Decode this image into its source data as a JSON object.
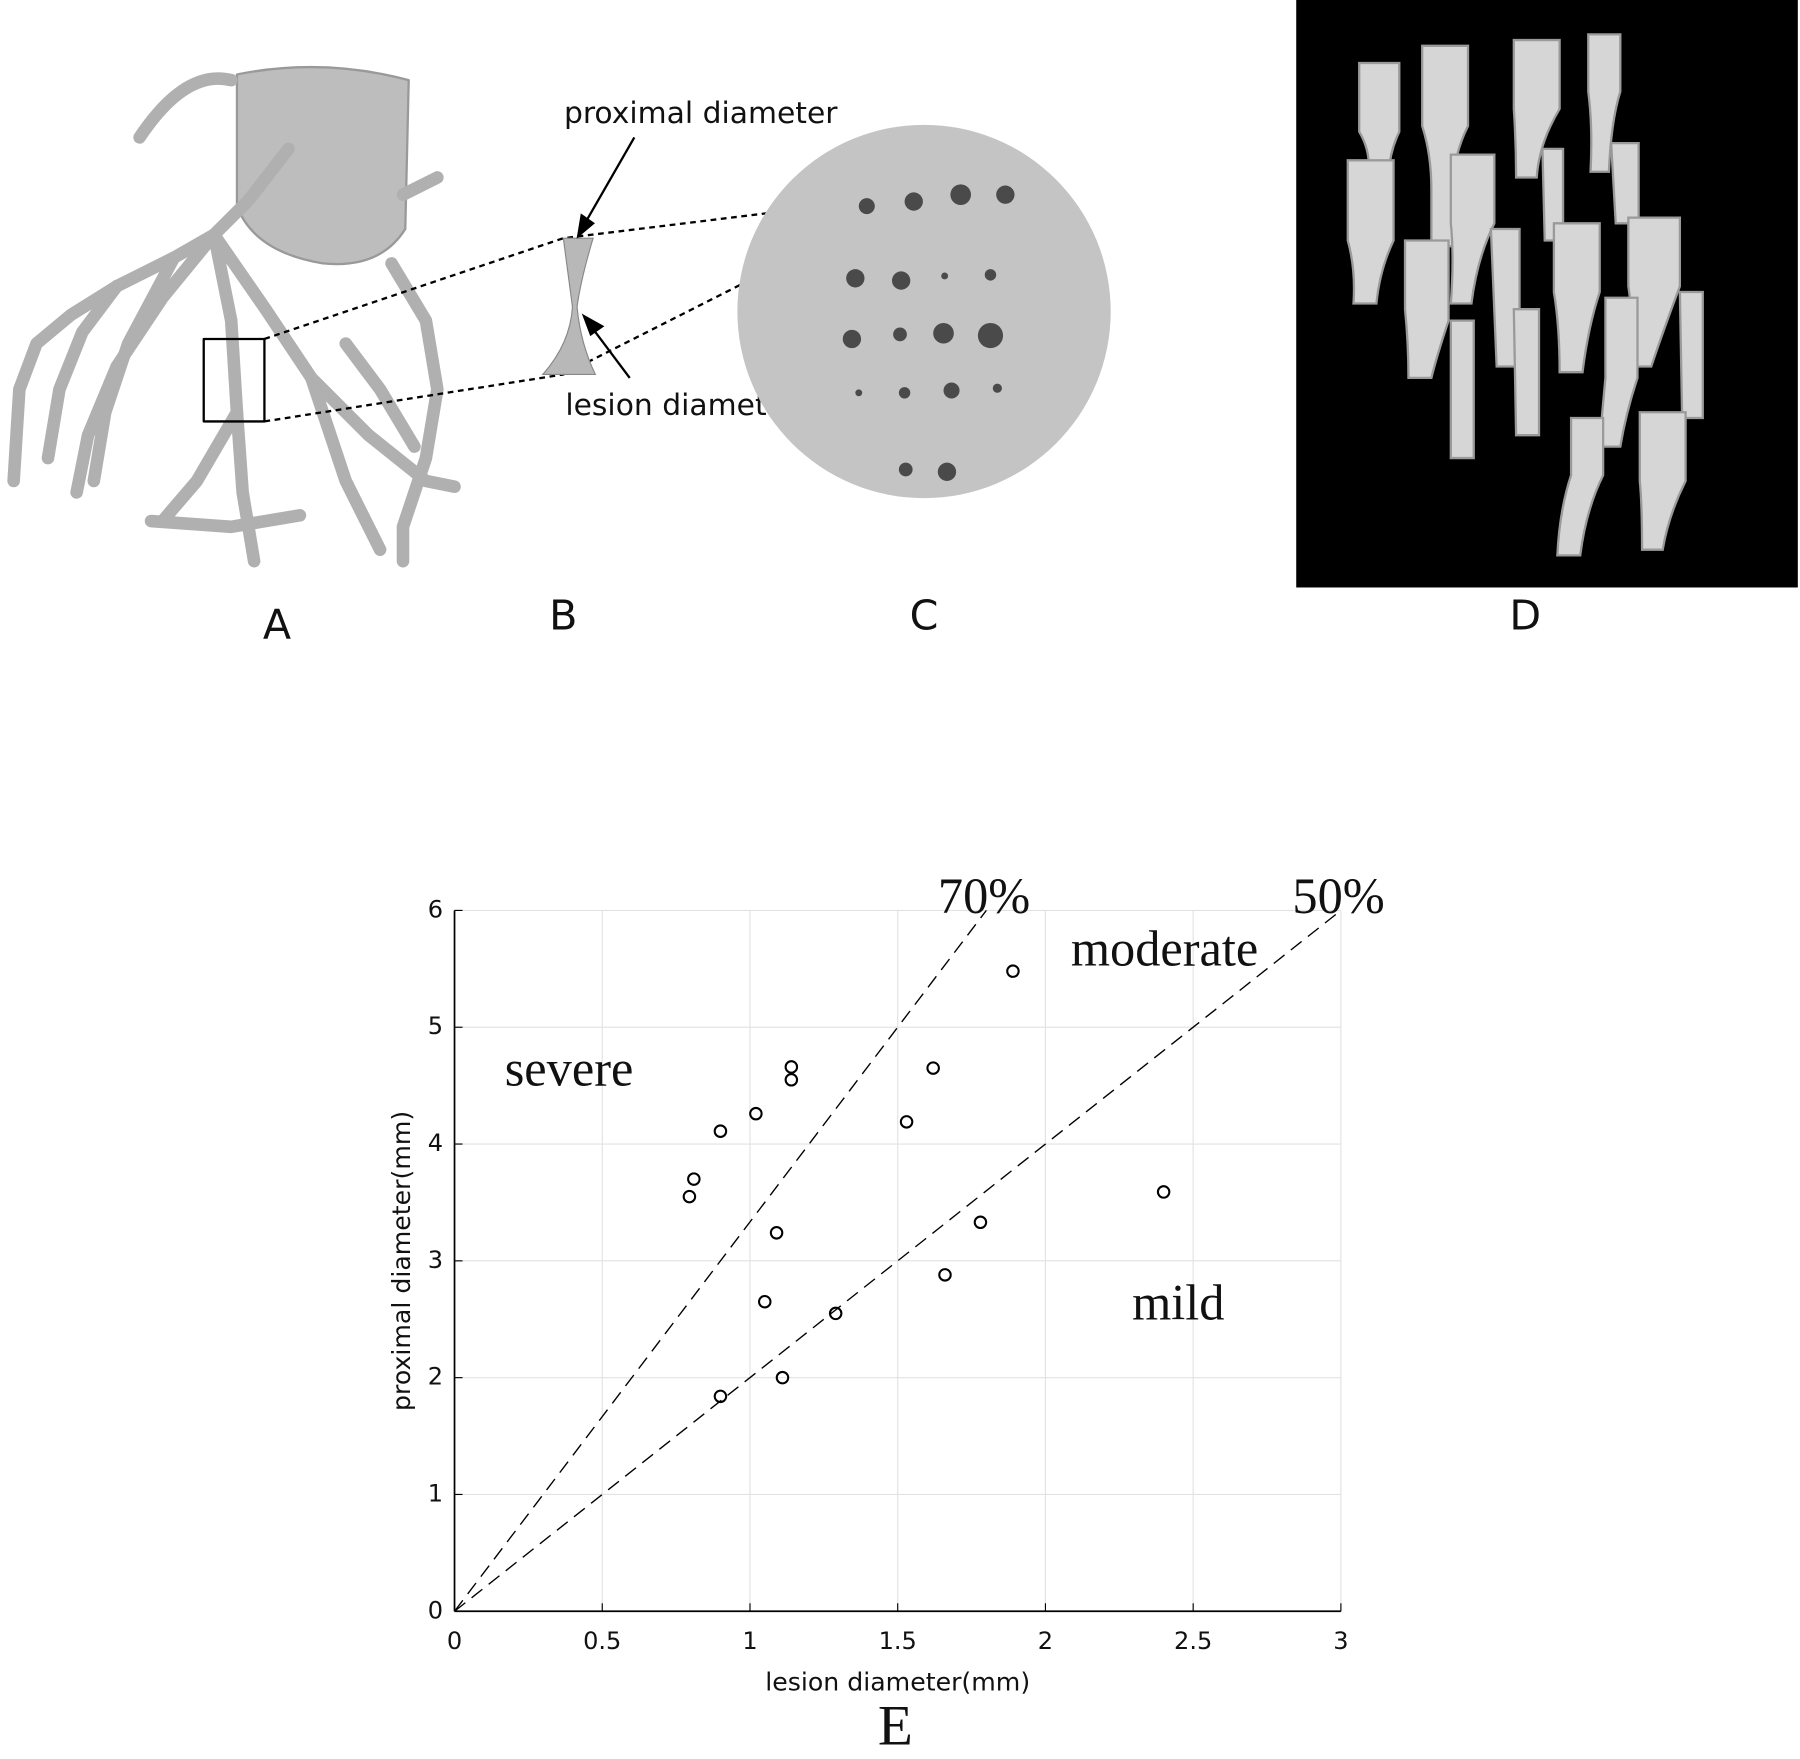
{
  "panel_labels": [
    "A",
    "B",
    "C",
    "D"
  ],
  "annotations": {
    "proximal": "proximal diameter",
    "lesion": "lesion diameter"
  },
  "chart_data": {
    "type": "scatter",
    "panel_label": "E",
    "x_label": "lesion diameter(mm)",
    "y_label": "proximal diameter(mm)",
    "xlim": [
      0,
      3
    ],
    "ylim": [
      0,
      6
    ],
    "xticks": [
      0,
      0.5,
      1,
      1.5,
      2,
      2.5,
      3
    ],
    "yticks": [
      0,
      1,
      2,
      3,
      4,
      5,
      6
    ],
    "grid": true,
    "marker_color": "#000000",
    "x": [
      0.795,
      0.81,
      0.9,
      1.02,
      1.14,
      1.14,
      1.09,
      1.05,
      0.9,
      1.11,
      1.29,
      1.53,
      1.62,
      1.89,
      1.78,
      1.66,
      2.4
    ],
    "values": [
      3.55,
      3.7,
      4.11,
      4.26,
      4.66,
      4.55,
      3.24,
      2.65,
      1.84,
      2.0,
      2.55,
      4.19,
      4.65,
      5.48,
      3.33,
      2.88,
      3.59
    ],
    "reference_lines": [
      {
        "value": 70,
        "label": "70%"
      },
      {
        "value": 50,
        "label": "50%"
      }
    ],
    "region_labels": [
      "severe",
      "moderate",
      "mild"
    ]
  }
}
